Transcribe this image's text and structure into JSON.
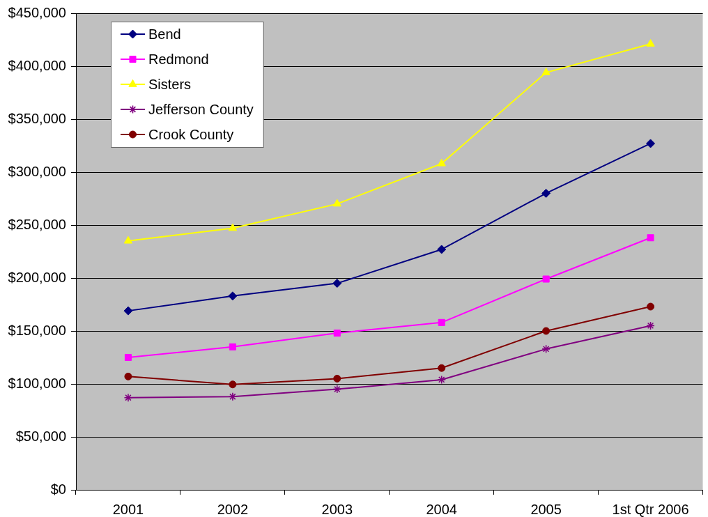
{
  "chart_data": {
    "type": "line",
    "categories": [
      "2001",
      "2002",
      "2003",
      "2004",
      "2005",
      "1st Qtr 2006"
    ],
    "series": [
      {
        "name": "Bend",
        "color": "#000080",
        "marker": "diamond",
        "values": [
          169000,
          183000,
          195000,
          227000,
          280000,
          327000
        ]
      },
      {
        "name": "Redmond",
        "color": "#ff00ff",
        "marker": "square",
        "values": [
          125000,
          135000,
          148000,
          158000,
          199000,
          238000
        ]
      },
      {
        "name": "Sisters",
        "color": "#ffff00",
        "marker": "triangle",
        "values": [
          235000,
          247000,
          270000,
          308000,
          394000,
          421000
        ]
      },
      {
        "name": "Jefferson County",
        "color": "#800080",
        "marker": "cross",
        "values": [
          87000,
          88000,
          95000,
          104000,
          133000,
          155000
        ]
      },
      {
        "name": "Crook County",
        "color": "#800000",
        "marker": "circle",
        "values": [
          107000,
          99500,
          105000,
          115000,
          150000,
          173000
        ]
      }
    ],
    "ylim": [
      0,
      450000
    ],
    "yticks": [
      {
        "value": 0,
        "label": "$0"
      },
      {
        "value": 50000,
        "label": "$50,000"
      },
      {
        "value": 100000,
        "label": "$100,000"
      },
      {
        "value": 150000,
        "label": "$150,000"
      },
      {
        "value": 200000,
        "label": "$200,000"
      },
      {
        "value": 250000,
        "label": "$250,000"
      },
      {
        "value": 300000,
        "label": "$300,000"
      },
      {
        "value": 350000,
        "label": "$350,000"
      },
      {
        "value": 400000,
        "label": "$400,000"
      },
      {
        "value": 450000,
        "label": "$450,000"
      }
    ],
    "grid": "y",
    "legend": "top left",
    "line_style": "solid"
  }
}
